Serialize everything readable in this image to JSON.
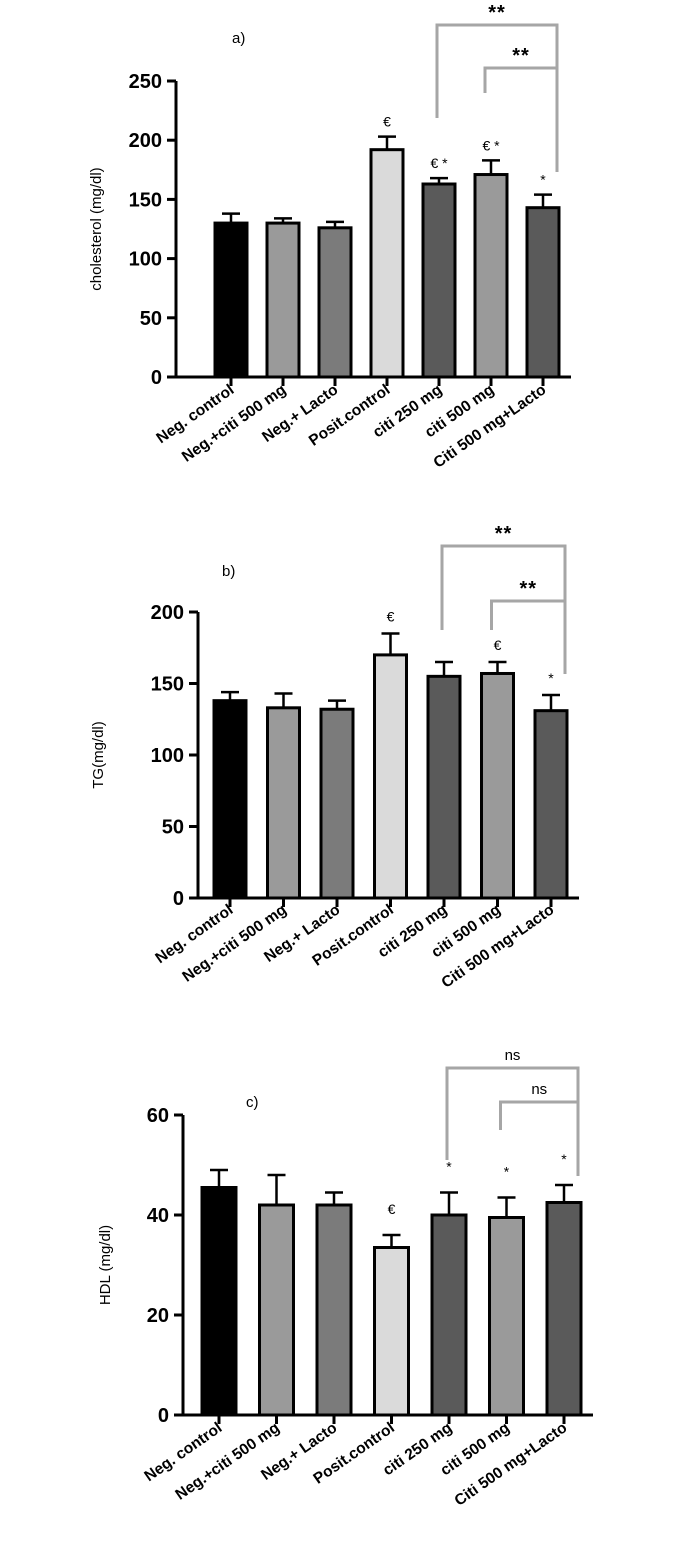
{
  "chart_data": [
    {
      "type": "bar",
      "panel_label": "a)",
      "ylabel": "cholesterol (mg/dl)",
      "ylim": [
        0,
        250
      ],
      "yticks": [
        0,
        50,
        100,
        150,
        200,
        250
      ],
      "ytick_labels": [
        "0",
        "50",
        "100",
        "150",
        "200",
        "250"
      ],
      "categories": [
        "Neg. control",
        "Neg.+citi 500 mg",
        "Neg.+ Lacto",
        "Posit.control",
        "citi 250 mg",
        "citi 500 mg",
        "Citi 500 mg+Lacto"
      ],
      "values": [
        130,
        130,
        126,
        192,
        163,
        171,
        143
      ],
      "errors": [
        8,
        4,
        5,
        11,
        5,
        12,
        11
      ],
      "bar_colors": [
        "#000000",
        "#9a9a9a",
        "#7b7b7b",
        "#dadada",
        "#5a5a5a",
        "#9a9a9a",
        "#5a5a5a"
      ],
      "annotations": [
        "",
        "",
        "",
        "€",
        "€ *",
        "€ *",
        "*"
      ],
      "brackets": [
        {
          "from": 4,
          "to": 6,
          "label": "**"
        },
        {
          "from": 5,
          "to": 6,
          "label": "**"
        }
      ],
      "grid": false
    },
    {
      "type": "bar",
      "panel_label": "b)",
      "ylabel": "TG(mg/dl)",
      "ylim": [
        0,
        200
      ],
      "yticks": [
        0,
        50,
        100,
        150,
        200
      ],
      "ytick_labels": [
        "0",
        "50",
        "100",
        "150",
        "200"
      ],
      "categories": [
        "Neg. control",
        "Neg.+citi 500 mg",
        "Neg.+ Lacto",
        "Posit.control",
        "citi 250 mg",
        "citi 500 mg",
        "Citi 500 mg+Lacto"
      ],
      "values": [
        138,
        133,
        132,
        170,
        155,
        157,
        131
      ],
      "errors": [
        6,
        10,
        6,
        15,
        10,
        8,
        11
      ],
      "bar_colors": [
        "#000000",
        "#9a9a9a",
        "#7b7b7b",
        "#dadada",
        "#5a5a5a",
        "#9a9a9a",
        "#5a5a5a"
      ],
      "annotations": [
        "",
        "",
        "",
        "€",
        "",
        "€",
        "*"
      ],
      "brackets": [
        {
          "from": 4,
          "to": 6,
          "label": "**"
        },
        {
          "from": 5,
          "to": 6,
          "label": "**"
        }
      ],
      "grid": false
    },
    {
      "type": "bar",
      "panel_label": "c)",
      "ylabel": "HDL (mg/dl)",
      "ylim": [
        0,
        60
      ],
      "yticks": [
        0,
        20,
        40,
        60
      ],
      "ytick_labels": [
        "0",
        "20",
        "40",
        "60"
      ],
      "categories": [
        "Neg. control",
        "Neg.+citi 500 mg",
        "Neg.+ Lacto",
        "Posit.control",
        "citi 250 mg",
        "citi 500 mg",
        "Citi 500 mg+Lacto"
      ],
      "values": [
        45.5,
        42,
        42,
        33.5,
        40,
        39.5,
        42.5
      ],
      "errors": [
        3.5,
        6,
        2.5,
        2.5,
        4.5,
        4,
        3.5
      ],
      "bar_colors": [
        "#000000",
        "#9a9a9a",
        "#7b7b7b",
        "#dadada",
        "#5a5a5a",
        "#9a9a9a",
        "#5a5a5a"
      ],
      "annotations": [
        "",
        "",
        "",
        "€",
        "*",
        "*",
        "*"
      ],
      "brackets": [
        {
          "from": 4,
          "to": 6,
          "label": "ns"
        },
        {
          "from": 5,
          "to": 6,
          "label": "ns"
        }
      ],
      "grid": false
    }
  ]
}
